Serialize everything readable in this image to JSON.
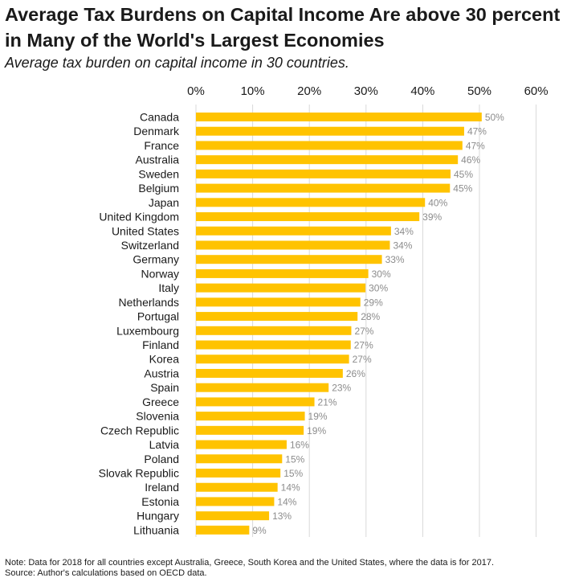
{
  "title": "Average Tax Burdens on Capital Income Are above 30 percent in Many of the World's Largest Economies",
  "subtitle": "Average tax burden on capital income in 30 countries.",
  "note": "Note: Data for 2018 for all countries except Australia, Greece, South Korea and the United States, where the data is for 2017.",
  "source": "Source: Author's calculations based on OECD data.",
  "colors": {
    "bar": "#FFC300",
    "gridline": "#D9D9D9",
    "value_label": "#8C8C8C",
    "text": "#1a1a1a"
  },
  "chart_data": {
    "type": "bar",
    "orientation": "horizontal",
    "x_axis_position": "top",
    "xlim": [
      0,
      60
    ],
    "x_ticks": [
      0,
      10,
      20,
      30,
      40,
      50,
      60
    ],
    "x_tick_labels": [
      "0%",
      "10%",
      "20%",
      "30%",
      "40%",
      "50%",
      "60%"
    ],
    "grid": "vertical",
    "categories": [
      "Canada",
      "Denmark",
      "France",
      "Australia",
      "Sweden",
      "Belgium",
      "Japan",
      "United Kingdom",
      "United States",
      "Switzerland",
      "Germany",
      "Norway",
      "Italy",
      "Netherlands",
      "Portugal",
      "Luxembourg",
      "Finland",
      "Korea",
      "Austria",
      "Spain",
      "Greece",
      "Slovenia",
      "Czech Republic",
      "Latvia",
      "Poland",
      "Slovak Republic",
      "Ireland",
      "Estonia",
      "Hungary",
      "Lithuania"
    ],
    "values": [
      50.4,
      47.3,
      47.0,
      46.2,
      44.9,
      44.8,
      40.4,
      39.4,
      34.4,
      34.2,
      32.8,
      30.4,
      29.9,
      29.0,
      28.5,
      27.4,
      27.3,
      27.0,
      25.9,
      23.4,
      20.9,
      19.2,
      19.0,
      16.0,
      15.2,
      14.9,
      14.4,
      13.8,
      12.9,
      9.4
    ],
    "value_labels": [
      "50%",
      "47%",
      "47%",
      "46%",
      "45%",
      "45%",
      "40%",
      "39%",
      "34%",
      "34%",
      "33%",
      "30%",
      "30%",
      "29%",
      "28%",
      "27%",
      "27%",
      "27%",
      "26%",
      "23%",
      "21%",
      "19%",
      "19%",
      "16%",
      "15%",
      "15%",
      "14%",
      "14%",
      "13%",
      "9%"
    ]
  }
}
